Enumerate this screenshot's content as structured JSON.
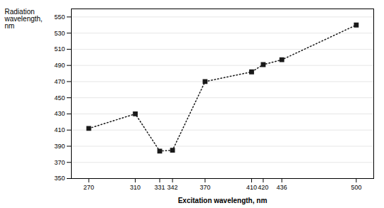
{
  "chart_data": {
    "type": "line",
    "x": [
      270,
      310,
      331,
      342,
      370,
      410,
      420,
      436,
      500
    ],
    "values": [
      412,
      430,
      384,
      385,
      470,
      482,
      491,
      497,
      540
    ],
    "xlabel": "Excitation wavelength, nm",
    "ylabel": "Radiation\nwavelength,\nnm",
    "xlim": [
      255,
      515
    ],
    "xticks": [
      270,
      310,
      331,
      342,
      370,
      410,
      420,
      436,
      500
    ],
    "ylim": [
      350,
      560
    ],
    "yticks": [
      350,
      370,
      390,
      410,
      430,
      450,
      470,
      490,
      510,
      530,
      550
    ],
    "grid": "y",
    "color": "#1a1a1a",
    "marker": "square",
    "line_style": "dotted"
  }
}
